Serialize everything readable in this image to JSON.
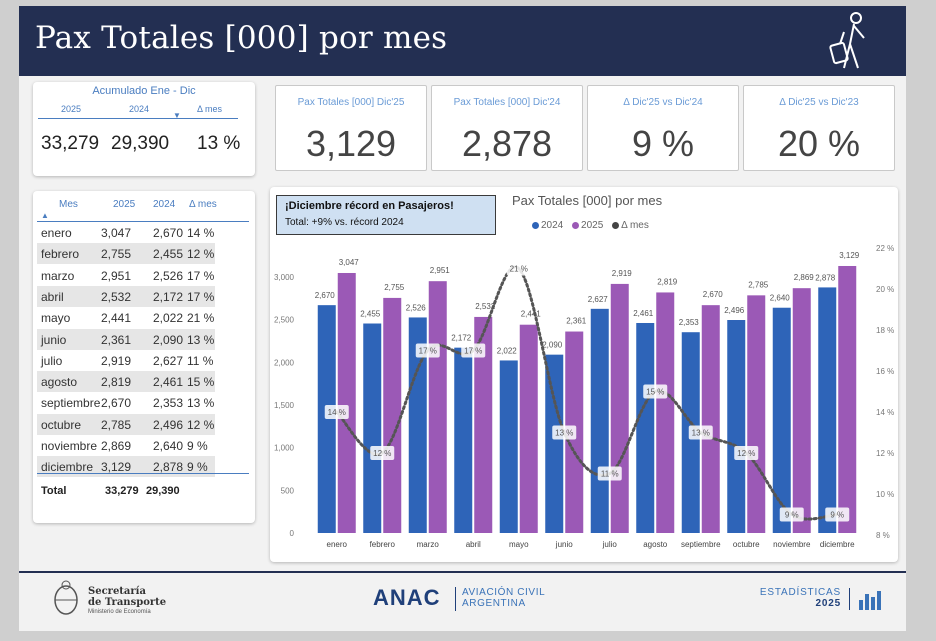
{
  "header": {
    "title": "Pax Totales [000] por mes"
  },
  "icons": {
    "traveler": "traveler-with-suitcase-icon",
    "shield": "argentina-shield-icon",
    "stats": "bar-stats-icon"
  },
  "colors": {
    "header_bg": "#232f52",
    "bar_2024": "#2e64b8",
    "bar_2025": "#9b59b6",
    "accent": "#4a7dc0"
  },
  "accumulated": {
    "title": "Acumulado Ene - Dic",
    "headers": [
      "2025",
      "2024",
      "Δ mes"
    ],
    "values": [
      "33,279",
      "29,390",
      "13 %"
    ]
  },
  "kpis": [
    {
      "label": "Pax Totales [000] Dic'25",
      "value": "3,129"
    },
    {
      "label": "Pax Totales [000] Dic'24",
      "value": "2,878"
    },
    {
      "label": "Δ Dic'25 vs Dic'24",
      "value": "9 %"
    },
    {
      "label": "Δ Dic'25 vs Dic'23",
      "value": "20 %"
    }
  ],
  "month_table": {
    "headers": [
      "Mes",
      "2025",
      "2024",
      "Δ mes"
    ],
    "rows": [
      [
        "enero",
        "3,047",
        "2,670",
        "14 %"
      ],
      [
        "febrero",
        "2,755",
        "2,455",
        "12 %"
      ],
      [
        "marzo",
        "2,951",
        "2,526",
        "17 %"
      ],
      [
        "abril",
        "2,532",
        "2,172",
        "17 %"
      ],
      [
        "mayo",
        "2,441",
        "2,022",
        "21 %"
      ],
      [
        "junio",
        "2,361",
        "2,090",
        "13 %"
      ],
      [
        "julio",
        "2,919",
        "2,627",
        "11 %"
      ],
      [
        "agosto",
        "2,819",
        "2,461",
        "15 %"
      ],
      [
        "septiembre",
        "2,670",
        "2,353",
        "13 %"
      ],
      [
        "octubre",
        "2,785",
        "2,496",
        "12 %"
      ],
      [
        "noviembre",
        "2,869",
        "2,640",
        "9 %"
      ],
      [
        "diciembre",
        "3,129",
        "2,878",
        "9 %"
      ]
    ],
    "total": [
      "Total",
      "33,279",
      "29,390"
    ]
  },
  "callout": {
    "title": "¡Diciembre récord en Pasajeros!",
    "subtitle": "Total: +9% vs. récord 2024"
  },
  "chart_data": {
    "type": "bar",
    "title": "Pax Totales [000] por mes",
    "categories": [
      "enero",
      "febrero",
      "marzo",
      "abril",
      "mayo",
      "junio",
      "julio",
      "agosto",
      "septiembre",
      "octubre",
      "noviembre",
      "diciembre"
    ],
    "series": [
      {
        "name": "2024",
        "values": [
          2670,
          2455,
          2526,
          2172,
          2022,
          2090,
          2627,
          2461,
          2353,
          2496,
          2640,
          2878
        ],
        "labels": [
          "2,670",
          "2,455",
          "2,526",
          "2,172",
          "2,022",
          "2,090",
          "2,627",
          "2,461",
          "2,353",
          "2,496",
          "2,640",
          "2,878"
        ]
      },
      {
        "name": "2025",
        "values": [
          3047,
          2755,
          2951,
          2532,
          2441,
          2361,
          2919,
          2819,
          2670,
          2785,
          2869,
          3129
        ],
        "labels": [
          "3,047",
          "2,755",
          "2,951",
          "2,532",
          "2,441",
          "2,361",
          "2,919",
          "2,819",
          "2,670",
          "2,785",
          "2,869",
          "3,129"
        ]
      },
      {
        "name": "Δ mes",
        "type": "line",
        "axis": "right",
        "values": [
          14,
          12,
          17,
          17,
          21,
          13,
          11,
          15,
          13,
          12,
          9,
          9
        ],
        "labels": [
          "14 %",
          "12 %",
          "17 %",
          "17 %",
          "21 %",
          "13 %",
          "11 %",
          "15 %",
          "13 %",
          "12 %",
          "9 %",
          "9 %"
        ]
      }
    ],
    "y_left": {
      "lim": [
        0,
        3000
      ],
      "ticks": [
        "0",
        "500",
        "1,000",
        "1,500",
        "2,000",
        "2,500",
        "3,000"
      ]
    },
    "y_right": {
      "lim": [
        8,
        22
      ],
      "ticks": [
        "8 %",
        "10 %",
        "12 %",
        "14 %",
        "16 %",
        "18 %",
        "20 %",
        "22 %"
      ]
    },
    "legend": [
      "2024",
      "2025",
      "Δ mes"
    ],
    "legend_position": "top",
    "grid": false
  },
  "footer": {
    "secretaria_line1": "Secretaría",
    "secretaria_line2": "de Transporte",
    "ministry": "Ministerio de Economía",
    "anac": "ANAC",
    "anac_sub1": "AVIACIÓN CIVIL",
    "anac_sub2": "ARGENTINA",
    "est_label": "ESTADÍSTICAS",
    "est_year": "2025"
  }
}
